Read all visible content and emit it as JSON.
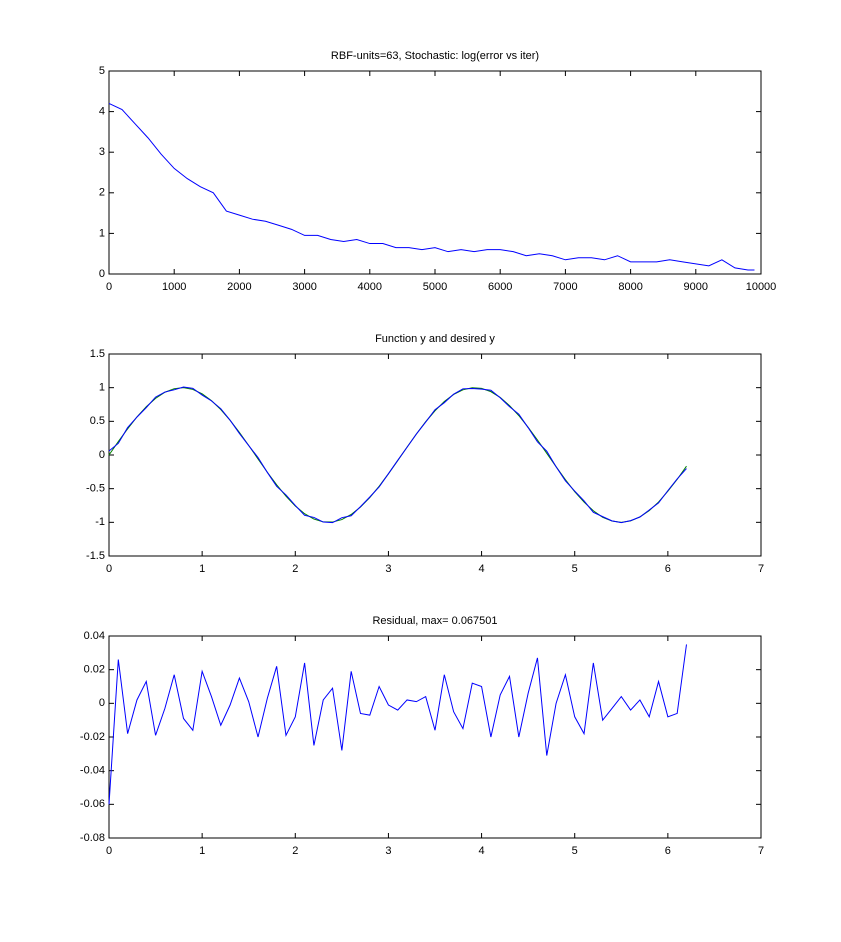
{
  "chart_data": [
    {
      "type": "line",
      "title": "RBF-units=63, Stochastic: log(error vs iter)",
      "x": [
        0,
        200,
        400,
        600,
        800,
        1000,
        1200,
        1400,
        1600,
        1800,
        2000,
        2200,
        2400,
        2600,
        2800,
        3000,
        3200,
        3400,
        3600,
        3800,
        4000,
        4200,
        4400,
        4600,
        4800,
        5000,
        5200,
        5400,
        5600,
        5800,
        6000,
        6200,
        6400,
        6600,
        6800,
        7000,
        7200,
        7400,
        7600,
        7800,
        8000,
        8200,
        8400,
        8600,
        8800,
        9000,
        9200,
        9400,
        9600,
        9800,
        9900
      ],
      "series": [
        {
          "color": "#0000ff",
          "values": [
            4.2,
            4.05,
            3.7,
            3.35,
            2.95,
            2.6,
            2.35,
            2.15,
            2.0,
            1.55,
            1.45,
            1.35,
            1.3,
            1.2,
            1.1,
            0.95,
            0.95,
            0.85,
            0.8,
            0.85,
            0.75,
            0.75,
            0.65,
            0.65,
            0.6,
            0.65,
            0.55,
            0.6,
            0.55,
            0.6,
            0.6,
            0.55,
            0.45,
            0.5,
            0.45,
            0.35,
            0.4,
            0.4,
            0.35,
            0.45,
            0.3,
            0.3,
            0.3,
            0.35,
            0.3,
            0.25,
            0.2,
            0.35,
            0.15,
            0.1,
            0.1
          ]
        }
      ],
      "xlim": [
        0,
        10000
      ],
      "xticks": [
        0,
        1000,
        2000,
        3000,
        4000,
        5000,
        6000,
        7000,
        8000,
        9000,
        10000
      ],
      "ylim": [
        0,
        5
      ],
      "yticks": [
        0,
        1,
        2,
        3,
        4,
        5
      ],
      "grid": false
    },
    {
      "type": "line",
      "title": "Function y and desired y",
      "x": [
        0,
        0.1,
        0.2,
        0.3,
        0.4,
        0.5,
        0.6,
        0.7,
        0.8,
        0.9,
        1,
        1.1,
        1.2,
        1.3,
        1.4,
        1.5,
        1.6,
        1.7,
        1.8,
        1.9,
        2,
        2.1,
        2.2,
        2.3,
        2.4,
        2.5,
        2.6,
        2.7,
        2.8,
        2.9,
        3,
        3.1,
        3.2,
        3.3,
        3.4,
        3.5,
        3.6,
        3.7,
        3.8,
        3.9,
        4,
        4.1,
        4.2,
        4.3,
        4.4,
        4.5,
        4.6,
        4.7,
        4.8,
        4.9,
        5,
        5.1,
        5.2,
        5.3,
        5.4,
        5.5,
        5.6,
        5.7,
        5.8,
        5.9,
        6,
        6.1,
        6.2
      ],
      "series": [
        {
          "color": "#008000",
          "values": [
            0,
            0.199,
            0.389,
            0.565,
            0.717,
            0.841,
            0.932,
            0.985,
            1.0,
            0.974,
            0.909,
            0.808,
            0.675,
            0.516,
            0.335,
            0.141,
            -0.058,
            -0.256,
            -0.443,
            -0.612,
            -0.757,
            -0.872,
            -0.952,
            -0.994,
            -0.996,
            -0.959,
            -0.883,
            -0.773,
            -0.631,
            -0.465,
            -0.279,
            -0.083,
            0.117,
            0.312,
            0.494,
            0.657,
            0.794,
            0.899,
            0.968,
            0.999,
            0.989,
            0.941,
            0.855,
            0.734,
            0.585,
            0.412,
            0.223,
            0.025,
            -0.174,
            -0.366,
            -0.544,
            -0.699,
            -0.828,
            -0.925,
            -0.981,
            -1.0,
            -0.979,
            -0.919,
            -0.825,
            -0.699,
            -0.537,
            -0.362,
            -0.166
          ]
        },
        {
          "color": "#0000ff",
          "values": [
            0.06,
            0.173,
            0.407,
            0.563,
            0.704,
            0.86,
            0.935,
            0.968,
            1.009,
            0.99,
            0.89,
            0.804,
            0.688,
            0.517,
            0.32,
            0.14,
            -0.038,
            -0.259,
            -0.465,
            -0.593,
            -0.749,
            -0.896,
            -0.927,
            -0.996,
            -1.005,
            -0.931,
            -0.902,
            -0.767,
            -0.624,
            -0.475,
            -0.278,
            -0.079,
            0.115,
            0.311,
            0.49,
            0.673,
            0.777,
            0.904,
            0.983,
            0.987,
            0.979,
            0.961,
            0.85,
            0.718,
            0.605,
            0.406,
            0.196,
            0.056,
            -0.174,
            -0.383,
            -0.536,
            -0.681,
            -0.852,
            -0.915,
            -0.978,
            -1.004,
            -0.975,
            -0.921,
            -0.817,
            -0.712,
            -0.529,
            -0.356,
            -0.201
          ]
        }
      ],
      "xlim": [
        0,
        7
      ],
      "xticks": [
        0,
        1,
        2,
        3,
        4,
        5,
        6,
        7
      ],
      "ylim": [
        -1.5,
        1.5
      ],
      "yticks": [
        -1.5,
        -1,
        -0.5,
        0,
        0.5,
        1,
        1.5
      ],
      "grid": false
    },
    {
      "type": "line",
      "title": "Residual, max= 0.067501",
      "x": [
        0,
        0.1,
        0.2,
        0.3,
        0.4,
        0.5,
        0.6,
        0.7,
        0.8,
        0.9,
        1,
        1.1,
        1.2,
        1.3,
        1.4,
        1.5,
        1.6,
        1.7,
        1.8,
        1.9,
        2,
        2.1,
        2.2,
        2.3,
        2.4,
        2.5,
        2.6,
        2.7,
        2.8,
        2.9,
        3,
        3.1,
        3.2,
        3.3,
        3.4,
        3.5,
        3.6,
        3.7,
        3.8,
        3.9,
        4,
        4.1,
        4.2,
        4.3,
        4.4,
        4.5,
        4.6,
        4.7,
        4.8,
        4.9,
        5,
        5.1,
        5.2,
        5.3,
        5.4,
        5.5,
        5.6,
        5.7,
        5.8,
        5.9,
        6,
        6.1,
        6.2
      ],
      "series": [
        {
          "color": "#0000ff",
          "values": [
            -0.06,
            0.026,
            -0.018,
            0.002,
            0.013,
            -0.019,
            -0.003,
            0.017,
            -0.009,
            -0.016,
            0.019,
            0.004,
            -0.013,
            -0.001,
            0.015,
            0.001,
            -0.02,
            0.003,
            0.022,
            -0.019,
            -0.008,
            0.024,
            -0.025,
            0.002,
            0.009,
            -0.028,
            0.019,
            -0.006,
            -0.007,
            0.01,
            -0.001,
            -0.004,
            0.002,
            0.001,
            0.004,
            -0.016,
            0.017,
            -0.005,
            -0.015,
            0.012,
            0.01,
            -0.02,
            0.005,
            0.016,
            -0.02,
            0.006,
            0.027,
            -0.031,
            0,
            0.017,
            -0.008,
            -0.018,
            0.024,
            -0.01,
            -0.003,
            0.004,
            -0.004,
            0.002,
            -0.008,
            0.013,
            -0.008,
            -0.006,
            0.035
          ]
        }
      ],
      "xlim": [
        0,
        7
      ],
      "xticks": [
        0,
        1,
        2,
        3,
        4,
        5,
        6,
        7
      ],
      "ylim": [
        -0.08,
        0.04
      ],
      "yticks": [
        -0.08,
        -0.06,
        -0.04,
        -0.02,
        0,
        0.02,
        0.04
      ],
      "grid": false
    }
  ]
}
